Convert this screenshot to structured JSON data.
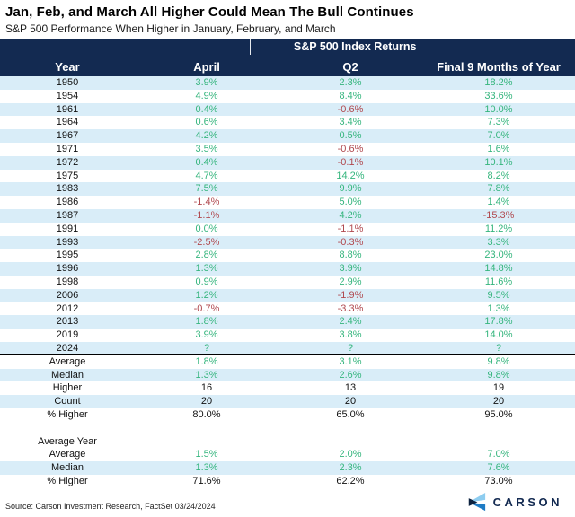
{
  "title": "Jan, Feb, and March All Higher Could Mean The Bull Continues",
  "subtitle": "S&P 500 Performance When Higher in January, February, and March",
  "source": "Source: Carson Investment Research, FactSet 03/24/2024",
  "logo_text": "CARSON",
  "colors": {
    "header_navy": "#132a51",
    "row_alt_blue": "#d9edf8",
    "positive_green": "#35b57d",
    "negative_red": "#b0484e",
    "neutral_black": "#111111",
    "logo_light_blue": "#8ecdf0",
    "logo_mid_blue": "#1e7bc4",
    "logo_dark_navy": "#0d2240"
  },
  "chart_data": {
    "type": "table",
    "title": "Jan, Feb, and March All Higher Could Mean The Bull Continues",
    "subtitle": "S&P 500 Performance When Higher in January, February, and March",
    "group_header": "S&P 500 Index Returns",
    "columns": [
      "Year",
      "April",
      "Q2",
      "Final 9 Months of Year"
    ],
    "rows": [
      {
        "y": "1950",
        "v": [
          "3.9%",
          "2.3%",
          "18.2%"
        ],
        "s": [
          "g",
          "g",
          "g"
        ],
        "bg": 1
      },
      {
        "y": "1954",
        "v": [
          "4.9%",
          "8.4%",
          "33.6%"
        ],
        "s": [
          "g",
          "g",
          "g"
        ],
        "bg": 0
      },
      {
        "y": "1961",
        "v": [
          "0.4%",
          "-0.6%",
          "10.0%"
        ],
        "s": [
          "g",
          "r",
          "g"
        ],
        "bg": 1
      },
      {
        "y": "1964",
        "v": [
          "0.6%",
          "3.4%",
          "7.3%"
        ],
        "s": [
          "g",
          "g",
          "g"
        ],
        "bg": 0
      },
      {
        "y": "1967",
        "v": [
          "4.2%",
          "0.5%",
          "7.0%"
        ],
        "s": [
          "g",
          "g",
          "g"
        ],
        "bg": 1
      },
      {
        "y": "1971",
        "v": [
          "3.5%",
          "-0.6%",
          "1.6%"
        ],
        "s": [
          "g",
          "r",
          "g"
        ],
        "bg": 0
      },
      {
        "y": "1972",
        "v": [
          "0.4%",
          "-0.1%",
          "10.1%"
        ],
        "s": [
          "g",
          "r",
          "g"
        ],
        "bg": 1
      },
      {
        "y": "1975",
        "v": [
          "4.7%",
          "14.2%",
          "8.2%"
        ],
        "s": [
          "g",
          "g",
          "g"
        ],
        "bg": 0
      },
      {
        "y": "1983",
        "v": [
          "7.5%",
          "9.9%",
          "7.8%"
        ],
        "s": [
          "g",
          "g",
          "g"
        ],
        "bg": 1
      },
      {
        "y": "1986",
        "v": [
          "-1.4%",
          "5.0%",
          "1.4%"
        ],
        "s": [
          "r",
          "g",
          "g"
        ],
        "bg": 0
      },
      {
        "y": "1987",
        "v": [
          "-1.1%",
          "4.2%",
          "-15.3%"
        ],
        "s": [
          "r",
          "g",
          "r"
        ],
        "bg": 1
      },
      {
        "y": "1991",
        "v": [
          "0.0%",
          "-1.1%",
          "11.2%"
        ],
        "s": [
          "g",
          "r",
          "g"
        ],
        "bg": 0
      },
      {
        "y": "1993",
        "v": [
          "-2.5%",
          "-0.3%",
          "3.3%"
        ],
        "s": [
          "r",
          "r",
          "g"
        ],
        "bg": 1
      },
      {
        "y": "1995",
        "v": [
          "2.8%",
          "8.8%",
          "23.0%"
        ],
        "s": [
          "g",
          "g",
          "g"
        ],
        "bg": 0
      },
      {
        "y": "1996",
        "v": [
          "1.3%",
          "3.9%",
          "14.8%"
        ],
        "s": [
          "g",
          "g",
          "g"
        ],
        "bg": 1
      },
      {
        "y": "1998",
        "v": [
          "0.9%",
          "2.9%",
          "11.6%"
        ],
        "s": [
          "g",
          "g",
          "g"
        ],
        "bg": 0
      },
      {
        "y": "2006",
        "v": [
          "1.2%",
          "-1.9%",
          "9.5%"
        ],
        "s": [
          "g",
          "r",
          "g"
        ],
        "bg": 1
      },
      {
        "y": "2012",
        "v": [
          "-0.7%",
          "-3.3%",
          "1.3%"
        ],
        "s": [
          "r",
          "r",
          "g"
        ],
        "bg": 0
      },
      {
        "y": "2013",
        "v": [
          "1.8%",
          "2.4%",
          "17.8%"
        ],
        "s": [
          "g",
          "g",
          "g"
        ],
        "bg": 1
      },
      {
        "y": "2019",
        "v": [
          "3.9%",
          "3.8%",
          "14.0%"
        ],
        "s": [
          "g",
          "g",
          "g"
        ],
        "bg": 0
      },
      {
        "y": "2024",
        "v": [
          "?",
          "?",
          "?"
        ],
        "s": [
          "g",
          "g",
          "g"
        ],
        "bg": 1,
        "divider_below": true
      },
      {
        "y": "Average",
        "v": [
          "1.8%",
          "3.1%",
          "9.8%"
        ],
        "s": [
          "g",
          "g",
          "g"
        ],
        "bg": 0
      },
      {
        "y": "Median",
        "v": [
          "1.3%",
          "2.6%",
          "9.8%"
        ],
        "s": [
          "g",
          "g",
          "g"
        ],
        "bg": 1
      },
      {
        "y": "Higher",
        "v": [
          "16",
          "13",
          "19"
        ],
        "s": [
          "k",
          "k",
          "k"
        ],
        "bg": 0
      },
      {
        "y": "Count",
        "v": [
          "20",
          "20",
          "20"
        ],
        "s": [
          "k",
          "k",
          "k"
        ],
        "bg": 1
      },
      {
        "y": "% Higher",
        "v": [
          "80.0%",
          "65.0%",
          "95.0%"
        ],
        "s": [
          "k",
          "k",
          "k"
        ],
        "bg": 0
      },
      {
        "y": "",
        "v": [
          "",
          "",
          ""
        ],
        "s": [
          "k",
          "k",
          "k"
        ],
        "bg": 0,
        "blank": true
      },
      {
        "y": "Average Year",
        "v": [
          "",
          "",
          ""
        ],
        "s": [
          "k",
          "k",
          "k"
        ],
        "bg": 0
      },
      {
        "y": "Average",
        "v": [
          "1.5%",
          "2.0%",
          "7.0%"
        ],
        "s": [
          "g",
          "g",
          "g"
        ],
        "bg": 0
      },
      {
        "y": "Median",
        "v": [
          "1.3%",
          "2.3%",
          "7.6%"
        ],
        "s": [
          "g",
          "g",
          "g"
        ],
        "bg": 1
      },
      {
        "y": "% Higher",
        "v": [
          "71.6%",
          "62.2%",
          "73.0%"
        ],
        "s": [
          "k",
          "k",
          "k"
        ],
        "bg": 0
      }
    ]
  }
}
